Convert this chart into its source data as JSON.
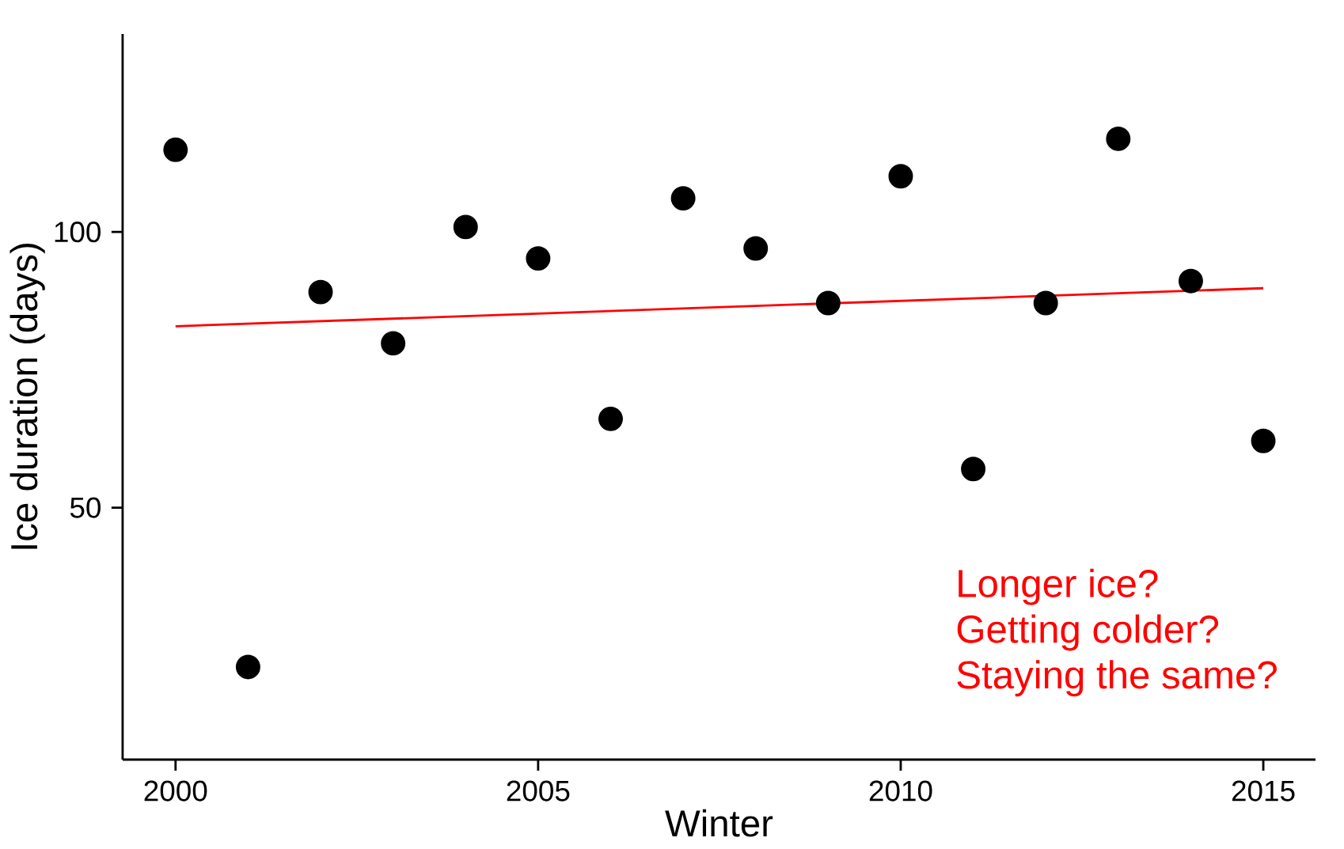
{
  "chart_data": {
    "type": "scatter",
    "xlabel": "Winter",
    "ylabel": "Ice duration (days)",
    "xlim": [
      1999.27,
      2015.72
    ],
    "ylim": [
      4.3,
      135.9
    ],
    "xticks": [
      2000,
      2005,
      2010,
      2015
    ],
    "yticks": [
      50,
      100
    ],
    "grid": false,
    "series": [
      {
        "marker": "circle",
        "color": "#000000",
        "x": [
          2000,
          2001,
          2002,
          2003,
          2004,
          2005,
          2006,
          2007,
          2008,
          2009,
          2010,
          2011,
          2012,
          2013,
          2014,
          2015
        ],
        "values": [
          114.9,
          21.1,
          89.1,
          79.8,
          100.9,
          95.2,
          66.1,
          106.1,
          97.0,
          87.1,
          110.1,
          57.0,
          87.1,
          116.9,
          91.1,
          62.1
        ]
      },
      {
        "type": "line",
        "marker": "none",
        "color": "#ff0000",
        "x": [
          2000,
          2015
        ],
        "values": [
          82.9,
          89.8
        ]
      }
    ],
    "annotations": [
      "Longer ice?",
      "Getting colder?",
      "Staying the same?"
    ]
  }
}
